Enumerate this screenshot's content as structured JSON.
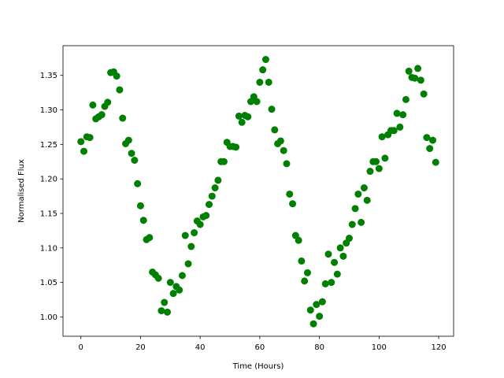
{
  "chart_data": {
    "type": "scatter",
    "xlabel": "Time (Hours)",
    "ylabel": "Normalised Flux",
    "xlim": [
      -6,
      125
    ],
    "ylim": [
      0.972,
      1.393
    ],
    "xticks": [
      0,
      20,
      40,
      60,
      80,
      100,
      120
    ],
    "yticks": [
      1.0,
      1.05,
      1.1,
      1.15,
      1.2,
      1.25,
      1.3,
      1.35
    ],
    "marker_color": "#008000",
    "grid": false,
    "series": [
      {
        "x": [
          0,
          1,
          2,
          3,
          4,
          5,
          6,
          7,
          8,
          9,
          10,
          11,
          12,
          13,
          14,
          15,
          16,
          17,
          18,
          19,
          20,
          21,
          22,
          23,
          24,
          25,
          26,
          27,
          28,
          29,
          30,
          31,
          32,
          33,
          34,
          35,
          36,
          37,
          38,
          39,
          40,
          41,
          42,
          43,
          44,
          45,
          46,
          47,
          48,
          49,
          50,
          51,
          52,
          53,
          54,
          55,
          56,
          57,
          58,
          59,
          60,
          61,
          62,
          63,
          64,
          65,
          66,
          67,
          68,
          69,
          70,
          71,
          72,
          73,
          74,
          75,
          76,
          77,
          78,
          79,
          80,
          81,
          82,
          83,
          84,
          85,
          86,
          87,
          88,
          89,
          90,
          91,
          92,
          93,
          94,
          95,
          96,
          97,
          98,
          99,
          100,
          101,
          102,
          103,
          104,
          105,
          106,
          107,
          108,
          109,
          110,
          111,
          112,
          113,
          114,
          115,
          116,
          117,
          118,
          119
        ],
        "y": [
          1.254,
          1.24,
          1.261,
          1.26,
          1.307,
          1.287,
          1.29,
          1.293,
          1.305,
          1.311,
          1.354,
          1.355,
          1.349,
          1.329,
          1.288,
          1.251,
          1.256,
          1.237,
          1.227,
          1.193,
          1.161,
          1.14,
          1.112,
          1.115,
          1.065,
          1.061,
          1.056,
          1.009,
          1.021,
          1.007,
          1.05,
          1.034,
          1.044,
          1.039,
          1.06,
          1.118,
          1.077,
          1.102,
          1.122,
          1.139,
          1.134,
          1.145,
          1.147,
          1.163,
          1.175,
          1.187,
          1.198,
          1.225,
          1.225,
          1.253,
          1.247,
          1.247,
          1.246,
          1.291,
          1.282,
          1.292,
          1.29,
          1.312,
          1.319,
          1.312,
          1.34,
          1.358,
          1.373,
          1.34,
          1.301,
          1.271,
          1.251,
          1.255,
          1.241,
          1.222,
          1.178,
          1.164,
          1.118,
          1.111,
          1.081,
          1.052,
          1.064,
          1.01,
          0.99,
          1.018,
          1.001,
          1.022,
          1.048,
          1.091,
          1.05,
          1.079,
          1.062,
          1.1,
          1.088,
          1.107,
          1.114,
          1.134,
          1.157,
          1.178,
          1.137,
          1.187,
          1.169,
          1.211,
          1.225,
          1.225,
          1.215,
          1.261,
          1.23,
          1.264,
          1.27,
          1.27,
          1.295,
          1.275,
          1.293,
          1.315,
          1.356,
          1.347,
          1.346,
          1.36,
          1.343,
          1.323,
          1.26,
          1.244,
          1.256,
          1.224
        ]
      }
    ]
  }
}
